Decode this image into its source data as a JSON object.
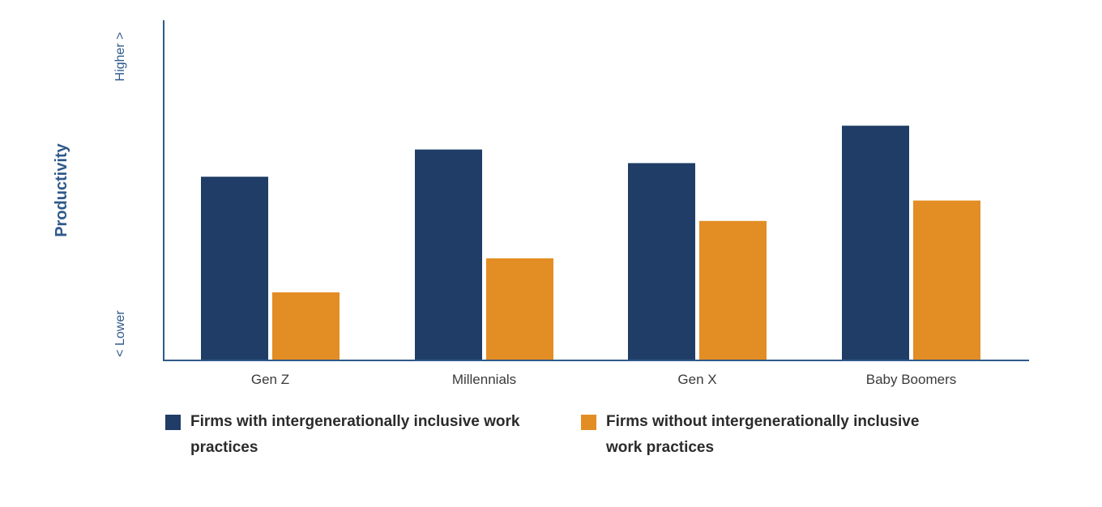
{
  "chart_data": {
    "type": "bar",
    "categories": [
      "Gen Z",
      "Millennials",
      "Gen X",
      "Baby Boomers"
    ],
    "series": [
      {
        "name": "Firms with intergenerationally inclusive work practices",
        "color": "#1f3d66",
        "values": [
          54,
          62,
          58,
          69
        ]
      },
      {
        "name": "Firms without intergenerationally inclusive work practices",
        "color": "#e38d25",
        "values": [
          20,
          30,
          41,
          47
        ]
      }
    ],
    "ylabel": "Productivity",
    "y_low_label": "< Lower",
    "y_high_label": "Higher >",
    "ylim": [
      0,
      100
    ],
    "grid": false,
    "legend_position": "bottom"
  }
}
